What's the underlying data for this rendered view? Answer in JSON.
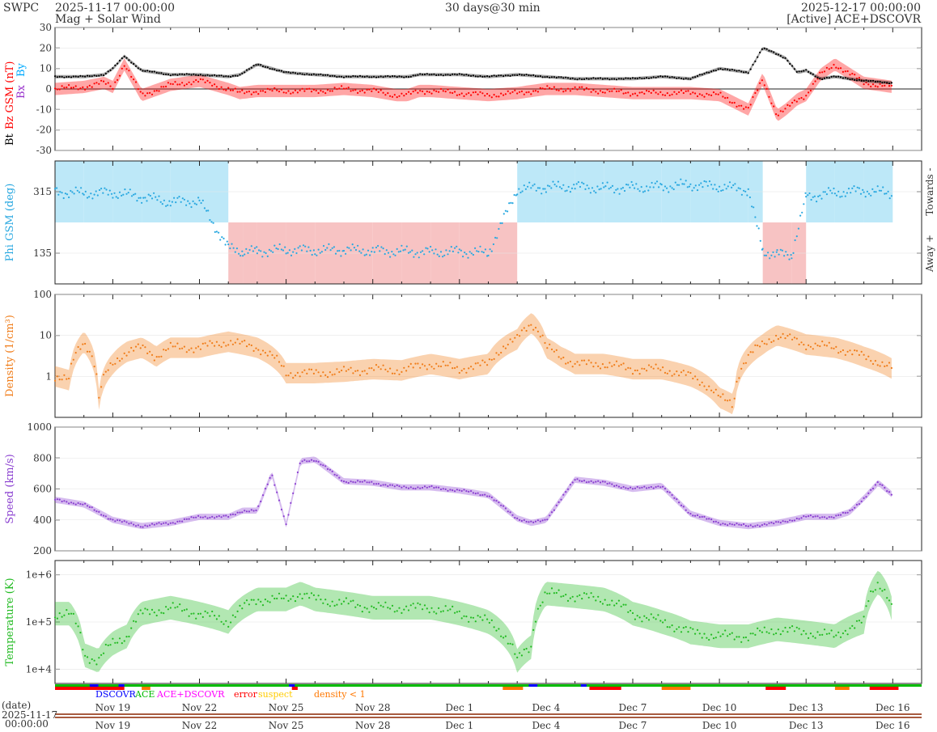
{
  "header": {
    "org": "SWPC",
    "start": "2025-11-17 00:00:00",
    "subtitle": "Mag + Solar Wind",
    "resolution": "30 days@30 min",
    "end": "2025-12-17 00:00:00",
    "source": "[Active] ACE+DSCOVR"
  },
  "colors": {
    "bt": "#000000",
    "bz": "#ff0000",
    "bx": "#9933cc",
    "by": "#00aaff",
    "phi": "#29a8e0",
    "phi_towards": "#bde8f8",
    "phi_away": "#f7c3c3",
    "density": "#f07d1a",
    "speed": "#8a3fd0",
    "temperature": "#22bb22",
    "dscovr": "#0000ff",
    "ace": "#00bb00",
    "ace_dscovr": "#ff00ff",
    "error": "#ff0000",
    "suspect": "#ffcc00",
    "density_lt_1": "#ff7700"
  },
  "chart_data": [
    {
      "type": "line",
      "panel": "mag",
      "ylabel_parts": [
        "Bt",
        "Bz GSM (nT)",
        "Bx",
        "By"
      ],
      "ylim": [
        -30,
        30
      ],
      "yticks": [
        "30",
        "20",
        "10",
        "0",
        "-10",
        "-20",
        "-30"
      ],
      "x_days": [
        0,
        1,
        1.7,
        2,
        2.4,
        3,
        4,
        5,
        6,
        6.4,
        7,
        8,
        9,
        10,
        11,
        11.8,
        12.2,
        12.6,
        13,
        14,
        15,
        16,
        17,
        18,
        19,
        20,
        21,
        22,
        23,
        24,
        24.5,
        25,
        25.3,
        25.7,
        26,
        26.5,
        27,
        28,
        29
      ],
      "series": [
        {
          "name": "Bt",
          "values": [
            6,
            6,
            7,
            10,
            16,
            9,
            7,
            7,
            6,
            7,
            12,
            8,
            7,
            6,
            6,
            6,
            6,
            7,
            7,
            7,
            6,
            7,
            6,
            5,
            5,
            5,
            6,
            5,
            10,
            8,
            20,
            17,
            15,
            8,
            9,
            5,
            6,
            4,
            3
          ]
        },
        {
          "name": "Bz",
          "values": [
            0,
            1,
            3,
            1,
            12,
            -3,
            2,
            4,
            0,
            -2,
            -1,
            -1,
            -1,
            0,
            -1,
            -3,
            -3,
            -1,
            -1,
            -2,
            -3,
            -2,
            0,
            0,
            -1,
            -2,
            -2,
            -2,
            -3,
            -10,
            5,
            -13,
            -10,
            -5,
            -3,
            7,
            12,
            3,
            1
          ]
        }
      ]
    },
    {
      "type": "scatter",
      "panel": "phi",
      "ylabel": "Phi GSM (deg)",
      "ylim": [
        45,
        405
      ],
      "yticks": [
        "315",
        "135"
      ],
      "right_labels": [
        "Towards -",
        "Away +"
      ],
      "x_days": [
        0,
        1,
        2,
        3,
        4,
        5,
        6,
        6.5,
        7,
        8,
        9,
        10,
        11,
        12,
        13,
        14,
        15,
        16,
        17,
        18,
        19,
        20,
        21,
        22,
        23,
        24,
        24.5,
        25,
        25.5,
        26,
        27,
        28,
        29
      ],
      "values": [
        315,
        310,
        312,
        300,
        285,
        288,
        150,
        140,
        140,
        145,
        143,
        145,
        142,
        140,
        138,
        140,
        135,
        322,
        328,
        330,
        325,
        327,
        330,
        335,
        330,
        320,
        140,
        132,
        130,
        300,
        312,
        318,
        310
      ],
      "sector": [
        "towards",
        "towards",
        "towards",
        "towards",
        "towards",
        "towards",
        "away",
        "away",
        "away",
        "away",
        "away",
        "away",
        "away",
        "away",
        "away",
        "away",
        "away",
        "towards",
        "towards",
        "towards",
        "towards",
        "towards",
        "towards",
        "towards",
        "towards",
        "towards",
        "away",
        "away",
        "away",
        "towards",
        "towards",
        "towards",
        "towards"
      ]
    },
    {
      "type": "line",
      "panel": "density",
      "ylabel": "Density (1/cm³)",
      "scale": "log",
      "ylim": [
        0.1,
        100
      ],
      "yticks": [
        "100",
        "10",
        "1"
      ],
      "x_days": [
        0,
        0.5,
        1,
        1.5,
        2,
        2.5,
        3,
        3.5,
        4,
        5,
        6,
        7,
        8,
        9,
        10,
        11,
        12,
        13,
        14,
        15,
        16,
        16.5,
        17,
        17.5,
        18,
        19,
        20,
        21,
        22,
        23,
        23.5,
        24,
        24.5,
        25,
        25.5,
        26,
        27,
        28,
        29
      ],
      "values": [
        1,
        0.8,
        7,
        0.2,
        2,
        4,
        5,
        3,
        5,
        5,
        7,
        5,
        1.2,
        1.2,
        1.3,
        1.5,
        1.4,
        2,
        1.5,
        2,
        8,
        20,
        5,
        3,
        2,
        2,
        1.5,
        1.5,
        1,
        0.3,
        0.2,
        3,
        6,
        10,
        8,
        6,
        5,
        3,
        1.5
      ]
    },
    {
      "type": "line",
      "panel": "speed",
      "ylabel": "Speed (km/s)",
      "ylim": [
        200,
        1000
      ],
      "yticks": [
        "1000",
        "800",
        "600",
        "400",
        "200"
      ],
      "x_days": [
        0,
        1,
        2,
        2.5,
        3,
        4,
        5,
        6,
        6.5,
        7,
        7.5,
        8,
        8.5,
        9,
        10,
        11,
        12,
        13,
        14,
        15,
        16,
        16.5,
        17,
        18,
        19,
        20,
        21,
        22,
        23,
        24,
        25,
        26,
        27,
        27.5,
        28,
        28.5,
        29
      ],
      "values": [
        530,
        500,
        400,
        380,
        360,
        380,
        420,
        420,
        460,
        460,
        700,
        370,
        780,
        790,
        650,
        640,
        610,
        610,
        590,
        560,
        410,
        380,
        400,
        660,
        640,
        600,
        620,
        440,
        380,
        360,
        380,
        420,
        420,
        450,
        540,
        640,
        560
      ]
    },
    {
      "type": "line",
      "panel": "temperature",
      "ylabel": "Temperature (K)",
      "scale": "log",
      "ylim": [
        5000,
        2000000
      ],
      "yticks": [
        "1e+6",
        "1e+5",
        "1e+4"
      ],
      "x_days": [
        0,
        0.5,
        1,
        1.5,
        2,
        2.5,
        3,
        4,
        5,
        6,
        7,
        8,
        8.5,
        9,
        10,
        11,
        12,
        13,
        14,
        15,
        16,
        16.5,
        17,
        18,
        19,
        20,
        21,
        22,
        23,
        24,
        25,
        26,
        27,
        28,
        28.5,
        29
      ],
      "values": [
        150000,
        150000,
        20000,
        15000,
        35000,
        50000,
        150000,
        200000,
        150000,
        100000,
        300000,
        300000,
        400000,
        300000,
        250000,
        200000,
        200000,
        200000,
        150000,
        100000,
        15000,
        30000,
        400000,
        350000,
        300000,
        150000,
        100000,
        60000,
        50000,
        50000,
        70000,
        60000,
        50000,
        100000,
        700000,
        150000
      ]
    }
  ],
  "x_axis": {
    "tick_labels": [
      "Nov 19",
      "Nov 22",
      "Nov 25",
      "Nov 28",
      "Dec 1",
      "Dec 4",
      "Dec 7",
      "Dec 10",
      "Dec 13",
      "Dec 16"
    ],
    "tick_days": [
      2,
      5,
      8,
      11,
      14,
      17,
      20,
      23,
      26,
      29
    ],
    "range_days": [
      0,
      30
    ],
    "date_label": "(date)",
    "date_start": "2025-11-17",
    "time_start": "00:00:00"
  },
  "legend": {
    "dscovr": "DSCOVR",
    "ace": "ACE",
    "ace_dscovr": "ACE+DSCOVR",
    "error": "error",
    "suspect": "suspect",
    "density_lt_1": "density < 1"
  }
}
